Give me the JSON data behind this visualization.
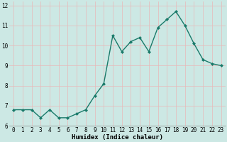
{
  "x": [
    0,
    1,
    2,
    3,
    4,
    5,
    6,
    7,
    8,
    9,
    10,
    11,
    12,
    13,
    14,
    15,
    16,
    17,
    18,
    19,
    20,
    21,
    22,
    23
  ],
  "y": [
    6.8,
    6.8,
    6.8,
    6.4,
    6.8,
    6.4,
    6.4,
    6.6,
    6.8,
    7.5,
    8.1,
    10.5,
    9.7,
    10.2,
    10.4,
    9.7,
    10.9,
    11.3,
    11.7,
    11.0,
    10.1,
    9.3,
    9.1,
    9.0
  ],
  "line_color": "#1a7a6a",
  "marker": "D",
  "marker_size": 2.0,
  "bg_color": "#cce8e4",
  "grid_color": "#e8b8b8",
  "xlabel": "Humidex (Indice chaleur)",
  "xlim": [
    -0.5,
    23.5
  ],
  "ylim": [
    6.0,
    12.2
  ],
  "yticks": [
    6,
    7,
    8,
    9,
    10,
    11,
    12
  ],
  "xticks": [
    0,
    1,
    2,
    3,
    4,
    5,
    6,
    7,
    8,
    9,
    10,
    11,
    12,
    13,
    14,
    15,
    16,
    17,
    18,
    19,
    20,
    21,
    22,
    23
  ],
  "tick_fontsize": 5.5,
  "label_fontsize": 6.5,
  "line_width": 1.0
}
